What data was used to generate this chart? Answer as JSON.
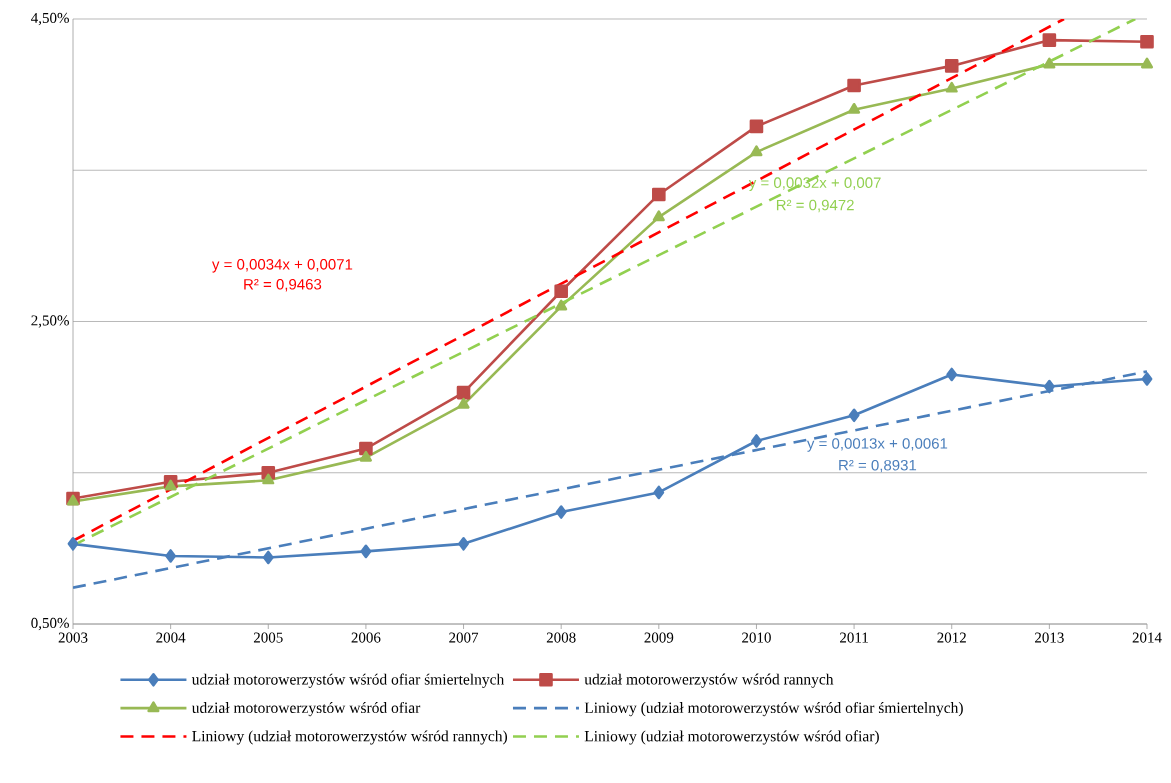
{
  "chart_data": {
    "type": "line",
    "x": [
      2003,
      2004,
      2005,
      2006,
      2007,
      2008,
      2009,
      2010,
      2011,
      2012,
      2013,
      2014
    ],
    "xlim": [
      2003,
      2014
    ],
    "xticks": [
      2003,
      2004,
      2005,
      2006,
      2007,
      2008,
      2009,
      2010,
      2011,
      2012,
      2013,
      2014
    ],
    "ylim": [
      0.5,
      4.5
    ],
    "yticks": [
      {
        "value": 0.5,
        "label": "0,50%"
      },
      {
        "value": 1.5,
        "label": null
      },
      {
        "value": 2.5,
        "label": "2,50%"
      },
      {
        "value": 3.5,
        "label": null
      },
      {
        "value": 4.5,
        "label": "4,50%"
      }
    ],
    "grid": "y",
    "legend": "bottom",
    "series": [
      {
        "name": "udział motorowerzystów wśród ofiar śmiertelnych",
        "color": "#4a7ebb",
        "marker": "diamond",
        "line_style": "solid",
        "values": [
          1.03,
          0.95,
          0.94,
          0.98,
          1.03,
          1.24,
          1.37,
          1.71,
          1.88,
          2.15,
          2.07,
          2.12
        ]
      },
      {
        "name": "udział motorowerzystów wśród rannych",
        "color": "#be4b48",
        "marker": "square",
        "line_style": "solid",
        "values": [
          1.33,
          1.44,
          1.5,
          1.66,
          2.03,
          2.7,
          3.34,
          3.79,
          4.06,
          4.19,
          4.36,
          4.35
        ]
      },
      {
        "name": "udział motorowerzystów wśród ofiar",
        "color": "#98b954",
        "marker": "triangle",
        "line_style": "solid",
        "values": [
          1.31,
          1.41,
          1.45,
          1.6,
          1.95,
          2.6,
          3.19,
          3.62,
          3.9,
          4.04,
          4.2,
          4.2
        ]
      },
      {
        "name": "Liniowy (udział motorowerzystów wśród ofiar śmiertelnych)",
        "color": "#4a7ebb",
        "marker": "none",
        "line_style": "dashed",
        "x": [
          2003,
          2014
        ],
        "values": [
          0.74,
          2.17
        ]
      },
      {
        "name": "Liniowy (udział motorowerzystów wśród rannych)",
        "color": "#ff0000",
        "marker": "none",
        "line_style": "dashed",
        "x": [
          2003,
          2013.15
        ],
        "values": [
          1.05,
          4.5
        ]
      },
      {
        "name": "Liniowy (udział motorowerzystów wśród ofiar)",
        "color": "#92d050",
        "marker": "none",
        "line_style": "dashed",
        "x": [
          2003,
          2013.88
        ],
        "values": [
          1.02,
          4.5
        ]
      }
    ],
    "annotations": [
      "y = 0,0034x + 0,0071",
      "R² = 0,9463",
      "y = 0,0032x + 0,007",
      "R² = 0,9472",
      "y = 0,0013x + 0,0061",
      "R² = 0,8931"
    ]
  }
}
